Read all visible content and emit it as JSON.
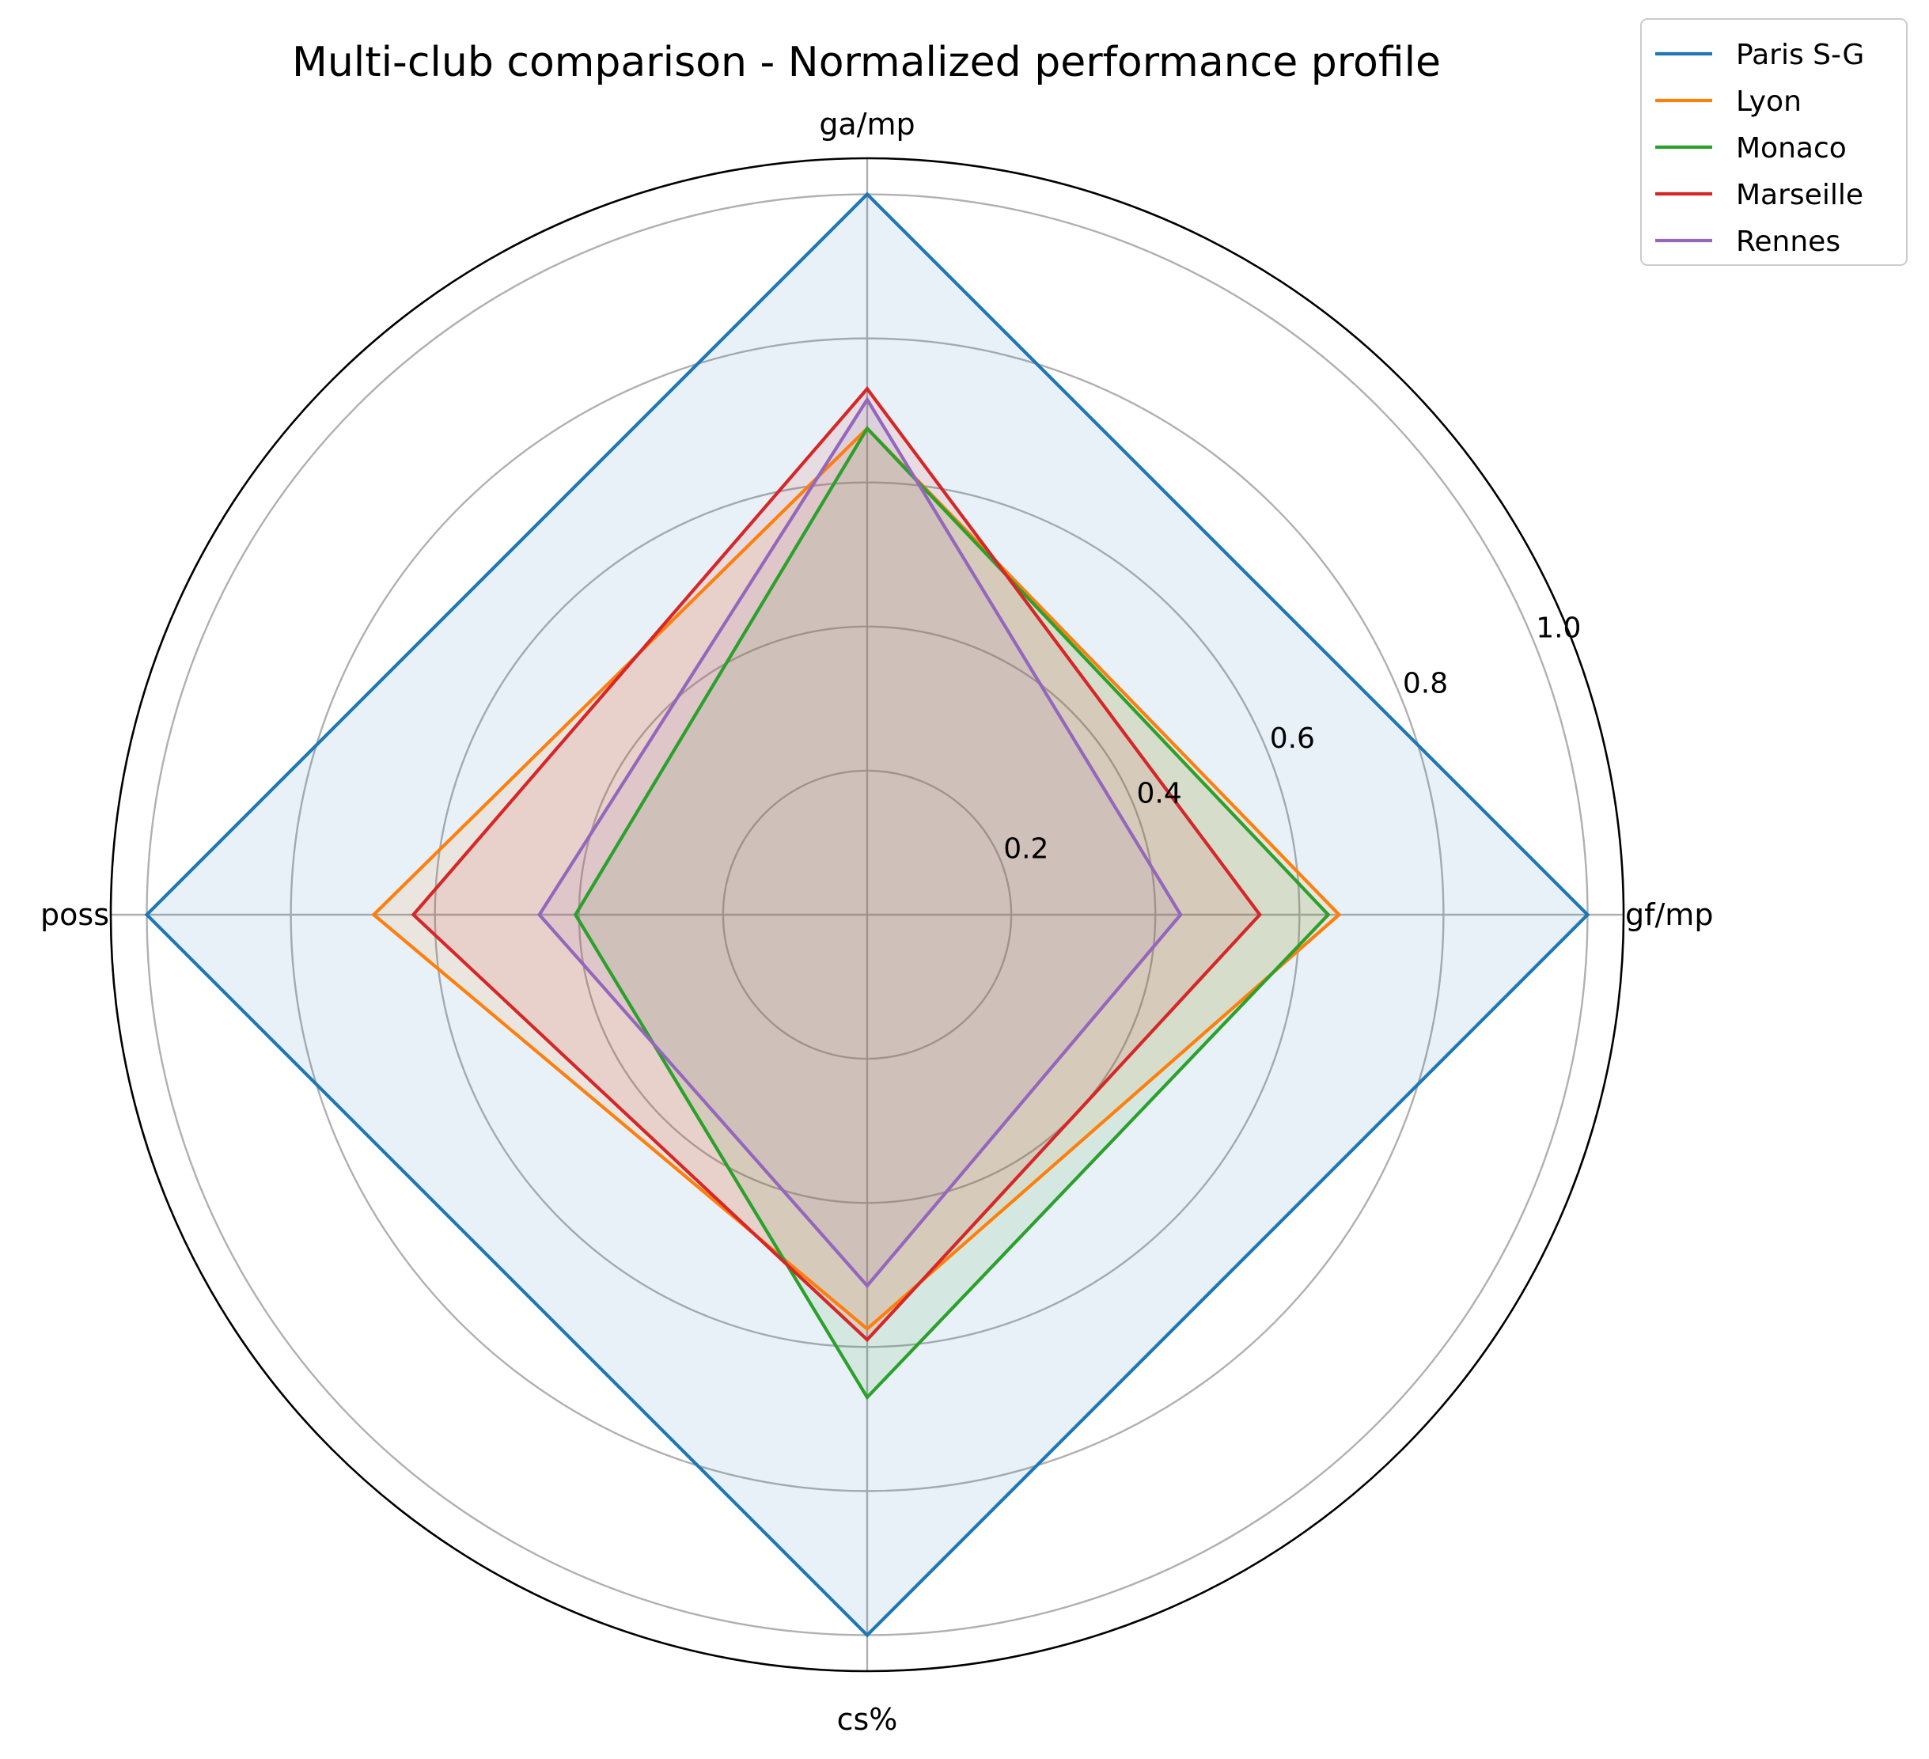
{
  "chart_data": {
    "type": "radar",
    "title": "Multi-club comparison - Normalized performance profile",
    "axes": [
      "gf/mp",
      "ga/mp",
      "poss",
      "cs%"
    ],
    "radial_ticks": [
      "0.2",
      "0.4",
      "0.6",
      "0.8",
      "1.0"
    ],
    "radial_tick_values": [
      0.2,
      0.4,
      0.6,
      0.8,
      1.0
    ],
    "rlim": [
      0,
      1.05
    ],
    "grid": true,
    "legend_position": "top-right",
    "series": [
      {
        "name": "Paris S-G",
        "color": "#1f77b4",
        "values": [
          1.0,
          1.0,
          1.0,
          1.0
        ]
      },
      {
        "name": "Lyon",
        "color": "#ff7f0e",
        "values": [
          0.655,
          0.675,
          0.685,
          0.575
        ]
      },
      {
        "name": "Monaco",
        "color": "#2ca02c",
        "values": [
          0.64,
          0.675,
          0.405,
          0.67
        ]
      },
      {
        "name": "Marseille",
        "color": "#d62728",
        "values": [
          0.545,
          0.73,
          0.63,
          0.59
        ]
      },
      {
        "name": "Rennes",
        "color": "#9467bd",
        "values": [
          0.435,
          0.715,
          0.455,
          0.515
        ]
      }
    ]
  }
}
